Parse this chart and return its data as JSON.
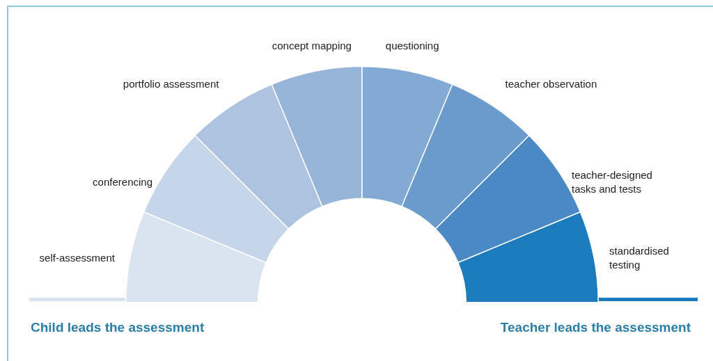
{
  "chart_data": {
    "type": "donut",
    "categories": [
      "self-assessment",
      "conferencing",
      "portfolio assessment",
      "concept mapping",
      "questioning",
      "teacher observation",
      "teacher-designed tasks and tests",
      "standardised testing"
    ],
    "values": [
      12.5,
      12.5,
      12.5,
      12.5,
      12.5,
      12.5,
      12.5,
      12.5
    ],
    "colors": [
      "#dae3f0",
      "#c6d5ea",
      "#adc3e0",
      "#97b4d9",
      "#83aad4",
      "#6a9bcc",
      "#4a89c4",
      "#1b7bbd"
    ],
    "legend": false,
    "annotations": [
      "Child leads the assessment",
      "Teacher leads the assessment"
    ]
  }
}
